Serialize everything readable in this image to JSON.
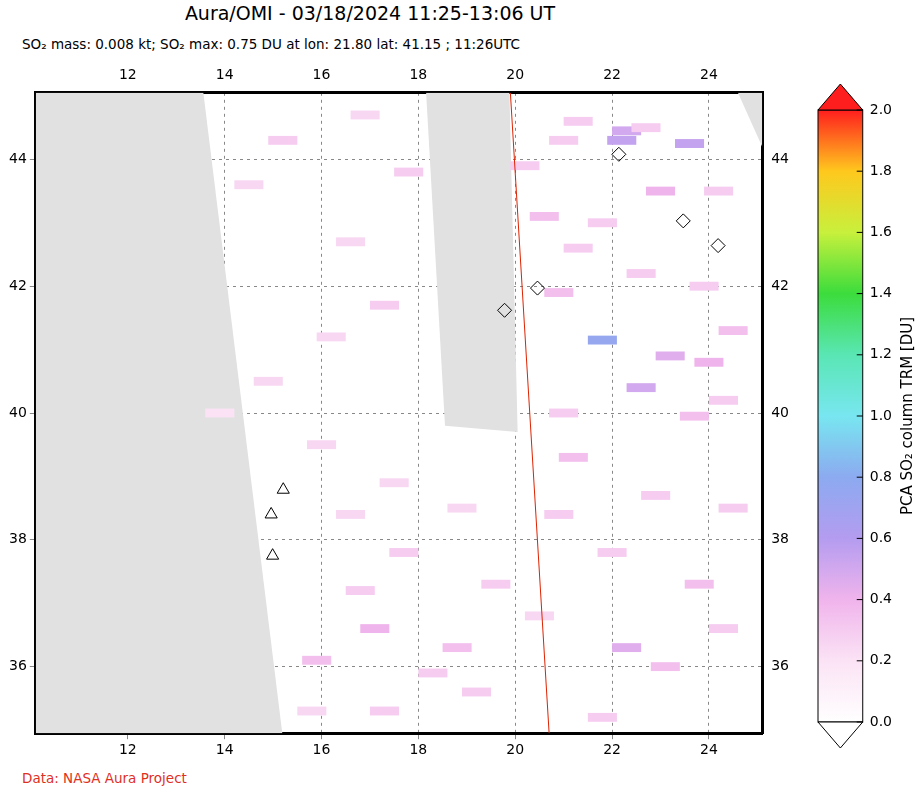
{
  "chart_data": {
    "type": "map",
    "title": "Aura/OMI - 03/18/2024 11:25-13:06 UT",
    "subtitle": "SO₂ mass: 0.008 kt; SO₂ max: 0.75 DU at lon: 21.80 lat: 41.15 ; 11:26UTC",
    "credit": "Data: NASA Aura Project",
    "xlim": [
      10.1,
      25.1
    ],
    "xticks": [
      12,
      14,
      16,
      18,
      20,
      22,
      24
    ],
    "ylim": [
      34.95,
      45.05
    ],
    "yticks": [
      36,
      38,
      40,
      42,
      44
    ],
    "grid": true,
    "cells": [
      [
        21.8,
        41.15,
        0.75
      ],
      [
        22.2,
        44.3,
        0.55
      ],
      [
        22.3,
        44.45,
        0.5
      ],
      [
        23.6,
        44.25,
        0.55
      ],
      [
        22.7,
        44.5,
        0.3
      ],
      [
        21.3,
        44.6,
        0.3
      ],
      [
        23.2,
        40.9,
        0.45
      ],
      [
        24.0,
        40.8,
        0.4
      ],
      [
        22.6,
        40.4,
        0.5
      ],
      [
        23.7,
        39.95,
        0.35
      ],
      [
        24.3,
        40.2,
        0.3
      ],
      [
        21.2,
        39.3,
        0.35
      ],
      [
        20.9,
        38.4,
        0.3
      ],
      [
        22.3,
        36.3,
        0.45
      ],
      [
        21.8,
        35.2,
        0.3
      ],
      [
        23.8,
        37.3,
        0.35
      ],
      [
        24.3,
        36.6,
        0.3
      ],
      [
        17.1,
        36.6,
        0.4
      ],
      [
        16.8,
        37.2,
        0.3
      ],
      [
        15.9,
        36.1,
        0.35
      ],
      [
        18.3,
        35.9,
        0.3
      ],
      [
        19.2,
        35.6,
        0.3
      ],
      [
        16.6,
        38.4,
        0.25
      ],
      [
        17.5,
        38.9,
        0.25
      ],
      [
        18.8,
        36.3,
        0.35
      ],
      [
        14.5,
        43.6,
        0.25
      ],
      [
        15.2,
        44.3,
        0.3
      ],
      [
        16.2,
        41.2,
        0.25
      ],
      [
        17.3,
        41.7,
        0.3
      ],
      [
        16.6,
        42.7,
        0.25
      ],
      [
        14.9,
        40.5,
        0.25
      ],
      [
        13.9,
        40.0,
        0.2
      ],
      [
        16.0,
        39.5,
        0.25
      ],
      [
        17.8,
        43.8,
        0.3
      ],
      [
        16.9,
        44.7,
        0.25
      ],
      [
        20.6,
        43.1,
        0.35
      ],
      [
        21.3,
        42.6,
        0.3
      ],
      [
        22.6,
        42.2,
        0.3
      ],
      [
        24.2,
        43.5,
        0.3
      ],
      [
        23.9,
        42.0,
        0.3
      ],
      [
        20.9,
        41.9,
        0.35
      ],
      [
        21.0,
        40.0,
        0.3
      ],
      [
        22.0,
        37.8,
        0.3
      ],
      [
        20.5,
        36.8,
        0.25
      ],
      [
        19.6,
        37.3,
        0.3
      ],
      [
        18.9,
        38.5,
        0.25
      ],
      [
        17.7,
        37.8,
        0.3
      ],
      [
        15.8,
        35.3,
        0.25
      ],
      [
        17.3,
        35.3,
        0.3
      ],
      [
        22.9,
        38.7,
        0.3
      ],
      [
        24.5,
        38.5,
        0.3
      ],
      [
        23.1,
        36.0,
        0.35
      ],
      [
        20.2,
        43.9,
        0.3
      ],
      [
        21.8,
        43.0,
        0.3
      ],
      [
        24.5,
        41.3,
        0.35
      ],
      [
        23.0,
        43.5,
        0.4
      ],
      [
        21.0,
        44.3,
        0.3
      ]
    ],
    "no_data": [
      [
        [
          10.1,
          45.05
        ],
        [
          13.56,
          45.05
        ],
        [
          15.19,
          34.95
        ],
        [
          10.1,
          34.95
        ]
      ],
      [
        [
          18.16,
          45.05
        ],
        [
          19.88,
          45.05
        ],
        [
          20.05,
          39.7
        ],
        [
          18.55,
          39.8
        ]
      ],
      [
        [
          24.6,
          45.05
        ],
        [
          25.1,
          45.05
        ],
        [
          25.1,
          44.2
        ]
      ]
    ],
    "orbit_line": [
      [
        19.9,
        45.05
      ],
      [
        20.7,
        34.95
      ]
    ],
    "series": [
      {
        "marker": "triangle",
        "x": [
          15.21,
          14.96,
          14.99
        ],
        "y": [
          38.79,
          38.4,
          37.75
        ]
      },
      {
        "marker": "diamond",
        "x": [
          22.14,
          23.47,
          24.19,
          19.78,
          20.46
        ],
        "y": [
          44.08,
          43.03,
          42.64,
          41.62,
          41.97
        ]
      }
    ],
    "colorbar": {
      "label": "PCA SO₂ column TRM [DU]",
      "range": [
        0,
        2
      ],
      "ticks": [
        {
          "value": 0,
          "label": "0.0"
        },
        {
          "value": 0.2,
          "label": "0.2"
        },
        {
          "value": 0.4,
          "label": "0.4"
        },
        {
          "value": 0.6,
          "label": "0.6"
        },
        {
          "value": 0.8,
          "label": "0.8"
        },
        {
          "value": 1,
          "label": "1.0"
        },
        {
          "value": 1.2,
          "label": "1.2"
        },
        {
          "value": 1.4,
          "label": "1.4"
        },
        {
          "value": 1.6,
          "label": "1.6"
        },
        {
          "value": 1.8,
          "label": "1.8"
        },
        {
          "value": 2,
          "label": "2.0"
        }
      ]
    }
  }
}
